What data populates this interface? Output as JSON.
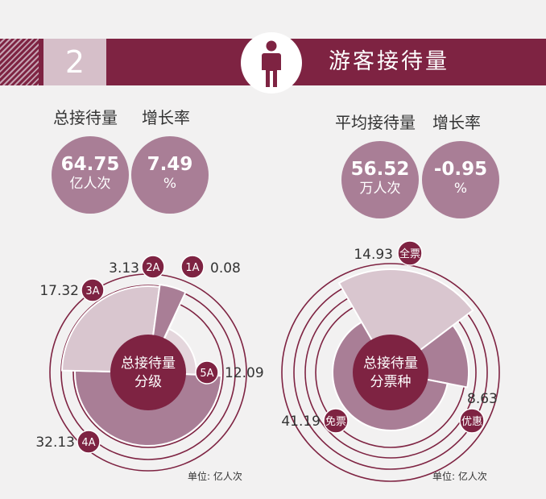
{
  "header": {
    "section_number": "2",
    "title": "游客接待量"
  },
  "metrics": {
    "left": {
      "total_label": "总接待量",
      "growth_label": "增长率",
      "total_value": "64.75",
      "total_unit": "亿人次",
      "growth_value": "7.49",
      "growth_unit": "%"
    },
    "right": {
      "avg_label": "平均接待量",
      "growth_label": "增长率",
      "avg_value": "56.52",
      "avg_unit": "万人次",
      "growth_value": "-0.95",
      "growth_unit": "%"
    }
  },
  "colors": {
    "brand": "#7e2342",
    "bubble": "#a97e96",
    "ring": "#7e2342",
    "slice_light": "#d9c6cf",
    "slice_mid": "#a97e96",
    "slice_pale": "#e4d6dc"
  },
  "chart_data": [
    {
      "type": "pie",
      "center_label": [
        "总接待量",
        "分级"
      ],
      "unit": "单位: 亿人次",
      "slices": [
        {
          "category": "1A",
          "value": 0.08
        },
        {
          "category": "5A",
          "value": 12.09
        },
        {
          "category": "4A",
          "value": 32.13
        },
        {
          "category": "3A",
          "value": 17.32
        },
        {
          "category": "2A",
          "value": 3.13
        }
      ]
    },
    {
      "type": "pie",
      "center_label": [
        "总接待量",
        "分票种"
      ],
      "unit": "单位: 亿人次",
      "slices": [
        {
          "category": "全票",
          "value": 14.93
        },
        {
          "category": "优惠",
          "value": 8.63
        },
        {
          "category": "免票",
          "value": 41.19
        }
      ]
    }
  ]
}
